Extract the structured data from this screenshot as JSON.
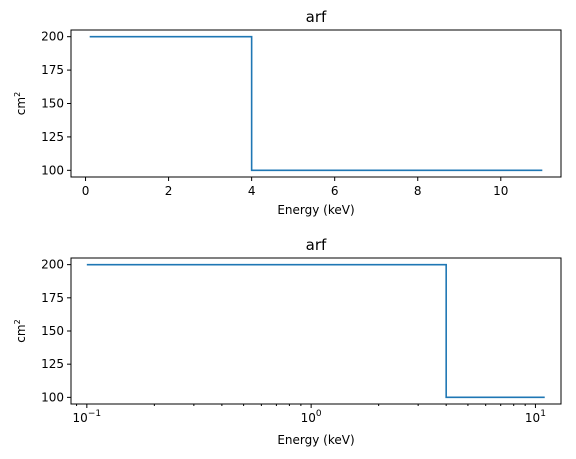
{
  "colors": {
    "series": "#1f77b4"
  },
  "chart_data": [
    {
      "type": "line",
      "step": "post",
      "title": "arf",
      "xlabel": "Energy (keV)",
      "ylabel_base": "cm",
      "ylabel_sup": "2",
      "xscale": "linear",
      "xlim": [
        -0.35,
        11.45
      ],
      "ylim": [
        95,
        205
      ],
      "xticks": [
        0,
        2,
        4,
        6,
        8,
        10
      ],
      "xtick_labels": [
        "0",
        "2",
        "4",
        "6",
        "8",
        "10"
      ],
      "yticks": [
        100,
        125,
        150,
        175,
        200
      ],
      "ytick_labels": [
        "100",
        "125",
        "150",
        "175",
        "200"
      ],
      "series": [
        {
          "x": [
            0.1,
            4.0,
            4.0,
            11.0
          ],
          "y": [
            200,
            200,
            100,
            100
          ]
        }
      ]
    },
    {
      "type": "line",
      "step": "post",
      "title": "arf",
      "xlabel": "Energy (keV)",
      "ylabel_base": "cm",
      "ylabel_sup": "2",
      "xscale": "log",
      "xlim": [
        0.085,
        13.0
      ],
      "ylim": [
        95,
        205
      ],
      "xticks": [
        0.1,
        1,
        10
      ],
      "xtick_labels": [
        "10",
        "10",
        "10"
      ],
      "xtick_sups": [
        "−1",
        "0",
        "1"
      ],
      "yticks": [
        100,
        125,
        150,
        175,
        200
      ],
      "ytick_labels": [
        "100",
        "125",
        "150",
        "175",
        "200"
      ],
      "series": [
        {
          "x": [
            0.1,
            4.0,
            4.0,
            11.0
          ],
          "y": [
            200,
            200,
            100,
            100
          ]
        }
      ]
    }
  ]
}
